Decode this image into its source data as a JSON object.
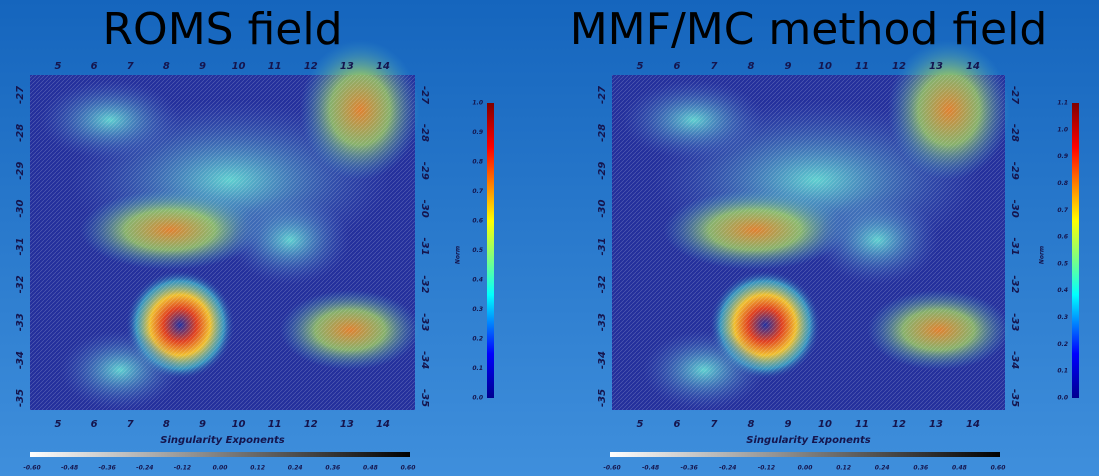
{
  "panels": [
    {
      "title": "ROMS field",
      "x_ticks": [
        "5",
        "6",
        "7",
        "8",
        "9",
        "10",
        "11",
        "12",
        "13",
        "14"
      ],
      "y_ticks": [
        "-27",
        "-28",
        "-29",
        "-30",
        "-31",
        "-32",
        "-33",
        "-34",
        "-35"
      ],
      "colorbar_label": "Norm",
      "colorbar_ticks": [
        "0.0",
        "0.1",
        "0.2",
        "0.3",
        "0.4",
        "0.5",
        "0.6",
        "0.7",
        "0.8",
        "0.9",
        "1.0"
      ],
      "x_label": "Singularity Exponents",
      "exponent_ticks": [
        "-0.60",
        "-0.48",
        "-0.36",
        "-0.24",
        "-0.12",
        "0.00",
        "0.12",
        "0.24",
        "0.36",
        "0.48",
        "0.60"
      ]
    },
    {
      "title": "MMF/MC method field",
      "x_ticks": [
        "5",
        "6",
        "7",
        "8",
        "9",
        "10",
        "11",
        "12",
        "13",
        "14"
      ],
      "y_ticks": [
        "-27",
        "-28",
        "-29",
        "-30",
        "-31",
        "-32",
        "-33",
        "-34",
        "-35"
      ],
      "colorbar_label": "Norm",
      "colorbar_ticks": [
        "0.0",
        "0.1",
        "0.2",
        "0.3",
        "0.4",
        "0.5",
        "0.6",
        "0.7",
        "0.8",
        "0.9",
        "1.0",
        "1.1"
      ],
      "x_label": "Singularity Exponents",
      "exponent_ticks": [
        "-0.60",
        "-0.48",
        "-0.36",
        "-0.24",
        "-0.12",
        "0.00",
        "0.12",
        "0.24",
        "0.36",
        "0.48",
        "0.60"
      ]
    }
  ]
}
